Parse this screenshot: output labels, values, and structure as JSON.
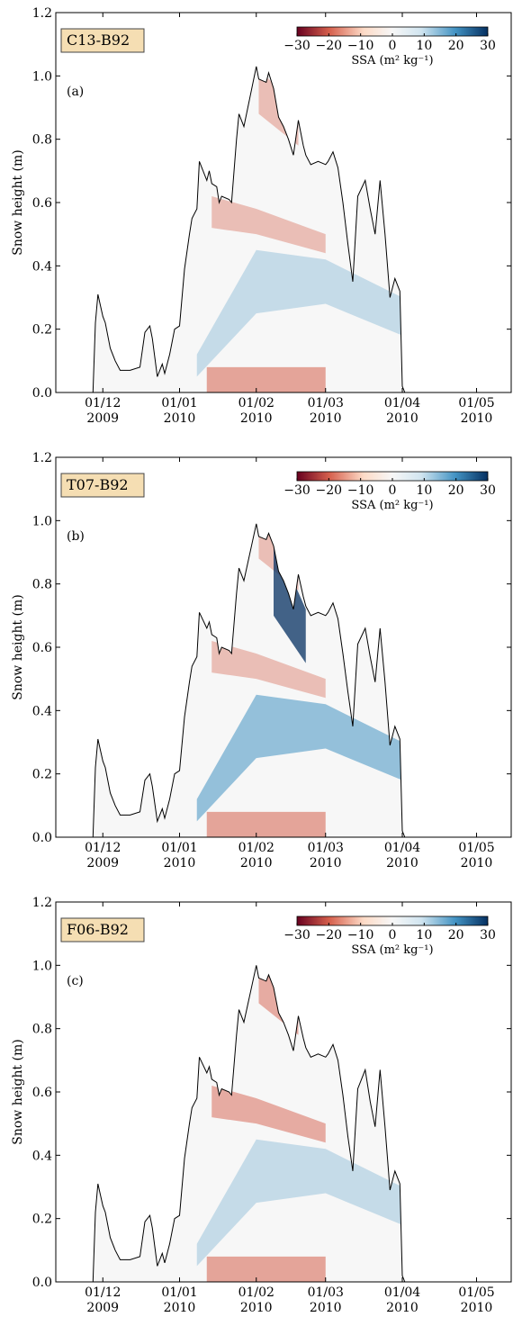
{
  "colors": {
    "negative_strong": "#67001f",
    "negative": "#d6604d",
    "negative_light": "#fddbc7",
    "neutral": "#f7f7f7",
    "positive_light": "#d1e5f0",
    "positive": "#4393c3",
    "positive_strong": "#053061",
    "snow_line": "#000000",
    "label_box_fill": "#f5deb3",
    "axes": "#000000"
  },
  "shared": {
    "ylabel": "Snow height (m)",
    "x_ticks": [
      {
        "date": "2009-12-01",
        "line1": "01/12",
        "line2": "2009"
      },
      {
        "date": "2010-01-01",
        "line1": "01/01",
        "line2": "2010"
      },
      {
        "date": "2010-02-01",
        "line1": "01/02",
        "line2": "2010"
      },
      {
        "date": "2010-03-01",
        "line1": "01/03",
        "line2": "2010"
      },
      {
        "date": "2010-04-01",
        "line1": "01/04",
        "line2": "2010"
      },
      {
        "date": "2010-05-01",
        "line1": "01/05",
        "line2": "2010"
      }
    ],
    "y_ticks": [
      "0.0",
      "0.2",
      "0.4",
      "0.6",
      "0.8",
      "1.0",
      "1.2"
    ],
    "colorbar_ticks": [
      "−30",
      "−20",
      "−10",
      "0",
      "10",
      "20",
      "30"
    ],
    "colorbar_label": "SSA (m² kg⁻¹)"
  },
  "chart_data": [
    {
      "type": "heatmap",
      "title": "C13-B92",
      "panel": "(a)",
      "xlabel": "",
      "ylabel": "Snow height (m)",
      "xlim": [
        "2009-11-12",
        "2010-05-15"
      ],
      "ylim": [
        0,
        1.2
      ],
      "grid": false,
      "colorbar": {
        "label": "SSA (m² kg⁻¹)",
        "min": -30,
        "max": 30,
        "ticks": [
          -30,
          -20,
          -10,
          0,
          10,
          20,
          30
        ],
        "placement": "top-right"
      },
      "snow_height": {
        "dates": [
          "2009-11-27",
          "2009-11-28",
          "2009-11-29",
          "2009-12-01",
          "2009-12-02",
          "2009-12-04",
          "2009-12-06",
          "2009-12-08",
          "2009-12-12",
          "2009-12-16",
          "2009-12-18",
          "2009-12-20",
          "2009-12-21",
          "2009-12-23",
          "2009-12-25",
          "2009-12-26",
          "2009-12-28",
          "2009-12-30",
          "2010-01-01",
          "2010-01-03",
          "2010-01-05",
          "2010-01-06",
          "2010-01-08",
          "2010-01-09",
          "2010-01-12",
          "2010-01-13",
          "2010-01-14",
          "2010-01-16",
          "2010-01-17",
          "2010-01-18",
          "2010-01-21",
          "2010-01-22",
          "2010-01-24",
          "2010-01-25",
          "2010-01-27",
          "2010-02-01",
          "2010-02-02",
          "2010-02-05",
          "2010-02-06",
          "2010-02-08",
          "2010-02-10",
          "2010-02-12",
          "2010-02-14",
          "2010-02-16",
          "2010-02-18",
          "2010-02-20",
          "2010-02-21",
          "2010-02-23",
          "2010-02-26",
          "2010-03-01",
          "2010-03-02",
          "2010-03-04",
          "2010-03-06",
          "2010-03-08",
          "2010-03-10",
          "2010-03-12",
          "2010-03-14",
          "2010-03-17",
          "2010-03-19",
          "2010-03-21",
          "2010-03-23",
          "2010-03-25",
          "2010-03-27",
          "2010-03-29",
          "2010-03-31",
          "2010-04-01",
          "2010-04-02",
          "2010-04-03",
          "2010-04-04",
          "2010-04-05",
          "2010-04-06",
          "2010-04-07",
          "2010-04-08",
          "2010-04-09",
          "2010-04-10",
          "2010-04-11",
          "2010-04-12",
          "2010-04-13",
          "2010-04-14",
          "2010-04-16",
          "2010-04-18",
          "2010-04-20",
          "2010-04-21",
          "2010-04-22"
        ],
        "values": [
          0.0,
          0.22,
          0.31,
          0.24,
          0.22,
          0.14,
          0.1,
          0.07,
          0.07,
          0.08,
          0.19,
          0.21,
          0.17,
          0.05,
          0.09,
          0.06,
          0.12,
          0.2,
          0.21,
          0.39,
          0.5,
          0.55,
          0.58,
          0.73,
          0.67,
          0.7,
          0.66,
          0.65,
          0.6,
          0.62,
          0.61,
          0.6,
          0.8,
          0.88,
          0.84,
          1.03,
          0.99,
          0.98,
          1.01,
          0.96,
          0.87,
          0.84,
          0.8,
          0.75,
          0.86,
          0.78,
          0.75,
          0.72,
          0.73,
          0.72,
          0.73,
          0.76,
          0.71,
          0.6,
          0.47,
          0.35,
          0.62,
          0.67,
          0.58,
          0.5,
          0.67,
          0.5,
          0.3,
          0.36,
          0.32,
          0.02,
          0.0,
          0.0,
          0.0,
          0.0,
          0.0,
          0.0,
          0.0,
          0.0,
          0.0,
          0.0,
          0.0,
          0.0,
          0.0,
          0.0,
          0.0,
          0.0,
          0.0,
          0.0
        ]
      }
    },
    {
      "type": "heatmap",
      "title": "T07-B92",
      "panel": "(b)",
      "xlabel": "",
      "ylabel": "Snow height (m)",
      "xlim": [
        "2009-11-12",
        "2010-05-15"
      ],
      "ylim": [
        0,
        1.2
      ],
      "grid": false,
      "colorbar": {
        "label": "SSA (m² kg⁻¹)",
        "min": -30,
        "max": 30,
        "ticks": [
          -30,
          -20,
          -10,
          0,
          10,
          20,
          30
        ],
        "placement": "top-right"
      },
      "snow_height": {
        "dates": [
          "2009-11-27",
          "2009-11-28",
          "2009-11-29",
          "2009-12-01",
          "2009-12-02",
          "2009-12-04",
          "2009-12-06",
          "2009-12-08",
          "2009-12-12",
          "2009-12-16",
          "2009-12-18",
          "2009-12-20",
          "2009-12-21",
          "2009-12-23",
          "2009-12-25",
          "2009-12-26",
          "2009-12-28",
          "2009-12-30",
          "2010-01-01",
          "2010-01-03",
          "2010-01-05",
          "2010-01-06",
          "2010-01-08",
          "2010-01-09",
          "2010-01-12",
          "2010-01-13",
          "2010-01-14",
          "2010-01-16",
          "2010-01-17",
          "2010-01-18",
          "2010-01-21",
          "2010-01-22",
          "2010-01-24",
          "2010-01-25",
          "2010-01-27",
          "2010-02-01",
          "2010-02-02",
          "2010-02-05",
          "2010-02-06",
          "2010-02-08",
          "2010-02-10",
          "2010-02-12",
          "2010-02-14",
          "2010-02-16",
          "2010-02-18",
          "2010-02-20",
          "2010-02-21",
          "2010-02-23",
          "2010-02-26",
          "2010-03-01",
          "2010-03-02",
          "2010-03-04",
          "2010-03-06",
          "2010-03-08",
          "2010-03-10",
          "2010-03-12",
          "2010-03-14",
          "2010-03-17",
          "2010-03-19",
          "2010-03-21",
          "2010-03-23",
          "2010-03-25",
          "2010-03-27",
          "2010-03-29",
          "2010-03-31",
          "2010-04-01",
          "2010-04-02"
        ],
        "values": [
          0.0,
          0.22,
          0.31,
          0.24,
          0.22,
          0.14,
          0.1,
          0.07,
          0.07,
          0.08,
          0.18,
          0.2,
          0.16,
          0.05,
          0.09,
          0.06,
          0.12,
          0.2,
          0.21,
          0.38,
          0.49,
          0.54,
          0.57,
          0.71,
          0.66,
          0.68,
          0.64,
          0.63,
          0.58,
          0.6,
          0.59,
          0.58,
          0.77,
          0.85,
          0.81,
          0.99,
          0.95,
          0.94,
          0.96,
          0.92,
          0.84,
          0.81,
          0.77,
          0.72,
          0.83,
          0.76,
          0.73,
          0.7,
          0.71,
          0.7,
          0.71,
          0.74,
          0.69,
          0.58,
          0.46,
          0.35,
          0.61,
          0.66,
          0.57,
          0.49,
          0.66,
          0.49,
          0.29,
          0.35,
          0.31,
          0.02,
          0.0
        ]
      }
    },
    {
      "type": "heatmap",
      "title": "F06-B92",
      "panel": "(c)",
      "xlabel": "",
      "ylabel": "Snow height (m)",
      "xlim": [
        "2009-11-12",
        "2010-05-15"
      ],
      "ylim": [
        0,
        1.2
      ],
      "grid": false,
      "colorbar": {
        "label": "SSA (m² kg⁻¹)",
        "min": -30,
        "max": 30,
        "ticks": [
          -30,
          -20,
          -10,
          0,
          10,
          20,
          30
        ],
        "placement": "top-right"
      },
      "snow_height": {
        "dates": [
          "2009-11-27",
          "2009-11-28",
          "2009-11-29",
          "2009-12-01",
          "2009-12-02",
          "2009-12-04",
          "2009-12-06",
          "2009-12-08",
          "2009-12-12",
          "2009-12-16",
          "2009-12-18",
          "2009-12-20",
          "2009-12-21",
          "2009-12-23",
          "2009-12-25",
          "2009-12-26",
          "2009-12-28",
          "2009-12-30",
          "2010-01-01",
          "2010-01-03",
          "2010-01-05",
          "2010-01-06",
          "2010-01-08",
          "2010-01-09",
          "2010-01-12",
          "2010-01-13",
          "2010-01-14",
          "2010-01-16",
          "2010-01-17",
          "2010-01-18",
          "2010-01-21",
          "2010-01-22",
          "2010-01-24",
          "2010-01-25",
          "2010-01-27",
          "2010-02-01",
          "2010-02-02",
          "2010-02-05",
          "2010-02-06",
          "2010-02-08",
          "2010-02-10",
          "2010-02-12",
          "2010-02-14",
          "2010-02-16",
          "2010-02-18",
          "2010-02-20",
          "2010-02-21",
          "2010-02-23",
          "2010-02-26",
          "2010-03-01",
          "2010-03-02",
          "2010-03-04",
          "2010-03-06",
          "2010-03-08",
          "2010-03-10",
          "2010-03-12",
          "2010-03-14",
          "2010-03-17",
          "2010-03-19",
          "2010-03-21",
          "2010-03-23",
          "2010-03-25",
          "2010-03-27",
          "2010-03-29",
          "2010-03-31",
          "2010-04-01",
          "2010-04-02"
        ],
        "values": [
          0.0,
          0.22,
          0.31,
          0.24,
          0.22,
          0.14,
          0.1,
          0.07,
          0.07,
          0.08,
          0.19,
          0.21,
          0.17,
          0.05,
          0.09,
          0.06,
          0.12,
          0.2,
          0.21,
          0.39,
          0.5,
          0.55,
          0.58,
          0.71,
          0.66,
          0.68,
          0.64,
          0.63,
          0.59,
          0.61,
          0.6,
          0.59,
          0.78,
          0.86,
          0.82,
          1.0,
          0.96,
          0.95,
          0.97,
          0.93,
          0.85,
          0.82,
          0.78,
          0.73,
          0.84,
          0.77,
          0.74,
          0.71,
          0.72,
          0.71,
          0.72,
          0.75,
          0.7,
          0.59,
          0.46,
          0.35,
          0.61,
          0.67,
          0.57,
          0.49,
          0.67,
          0.49,
          0.29,
          0.35,
          0.31,
          0.02,
          0.0
        ]
      }
    }
  ]
}
